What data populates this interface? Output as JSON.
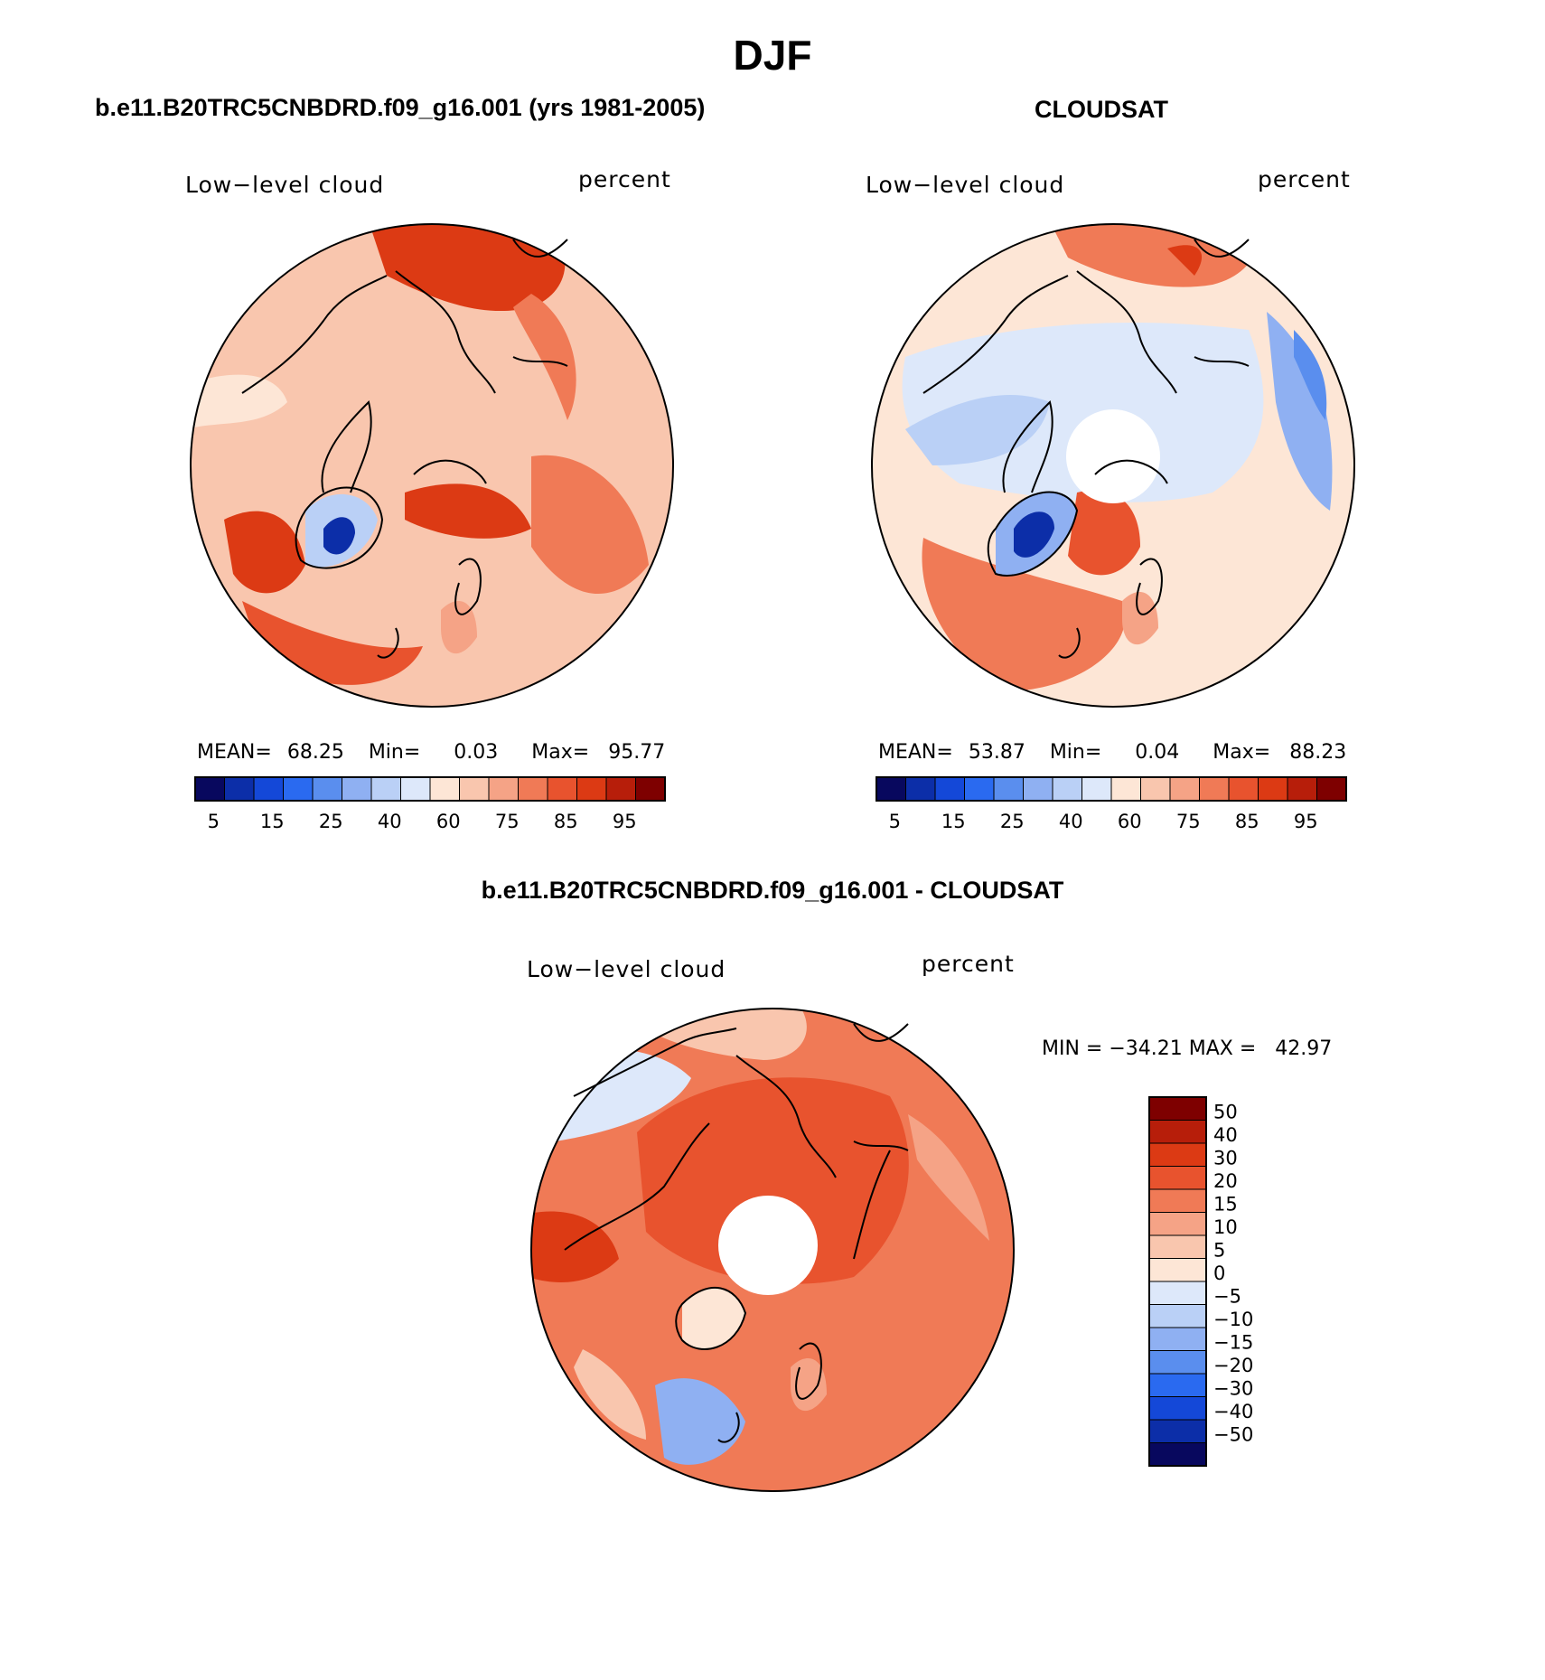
{
  "figure": {
    "title": "DJF"
  },
  "panels": [
    {
      "id": "model",
      "header": "b.e11.B20TRC5CNBDRD.f09_g16.001 (yrs 1981-2005)",
      "left_label": "Low−level cloud",
      "right_label": "percent",
      "mean_label": "MEAN=",
      "mean_value": "68.25",
      "min_label": "Min=",
      "min_value": "0.03",
      "max_label": "Max=",
      "max_value": "95.77",
      "has_pole_hole": false
    },
    {
      "id": "obs",
      "header": "CLOUDSAT",
      "left_label": "Low−level cloud",
      "right_label": "percent",
      "mean_label": "MEAN=",
      "mean_value": "53.87",
      "min_label": "Min=",
      "min_value": "0.04",
      "max_label": "Max=",
      "max_value": "88.23",
      "has_pole_hole": true
    }
  ],
  "diff_panel": {
    "header": "b.e11.B20TRC5CNBDRD.f09_g16.001 - CLOUDSAT",
    "left_label": "Low−level cloud",
    "right_label": "percent",
    "minmax_text": "MIN = −34.21 MAX =   42.97"
  },
  "colorbar_abs": {
    "tick_labels": [
      "5",
      "15",
      "25",
      "40",
      "60",
      "75",
      "85",
      "95"
    ],
    "colors": [
      "#08085e",
      "#0c2ea8",
      "#1448d8",
      "#2a6af0",
      "#5a8eee",
      "#8fb0f2",
      "#bad0f6",
      "#dde8fa",
      "#fde6d6",
      "#f9c6ae",
      "#f5a386",
      "#f07a56",
      "#e8532e",
      "#dc3a14",
      "#b71e0a",
      "#7e0000"
    ]
  },
  "colorbar_diff": {
    "tick_labels": [
      "50",
      "40",
      "30",
      "20",
      "15",
      "10",
      "5",
      "0",
      "−5",
      "−10",
      "−15",
      "−20",
      "−30",
      "−40",
      "−50"
    ],
    "colors": [
      "#7e0000",
      "#b71e0a",
      "#dc3a14",
      "#e8532e",
      "#f07a56",
      "#f5a386",
      "#f9c6ae",
      "#fde6d6",
      "#dde8fa",
      "#bad0f6",
      "#8fb0f2",
      "#5a8eee",
      "#2a6af0",
      "#1448d8",
      "#0c2ea8",
      "#08085e"
    ]
  },
  "map_colors": {
    "land_outline": "#000000",
    "pale": "#fde6d6",
    "light": "#f9c6ae",
    "mid": "#f5a386",
    "strong": "#f07a56",
    "hot": "#e8532e",
    "deep": "#dc3a14",
    "darkred": "#b71e0a",
    "cool": "#dde8fa",
    "cool2": "#bad0f6",
    "blue": "#5a8eee",
    "navy": "#0c2ea8"
  }
}
